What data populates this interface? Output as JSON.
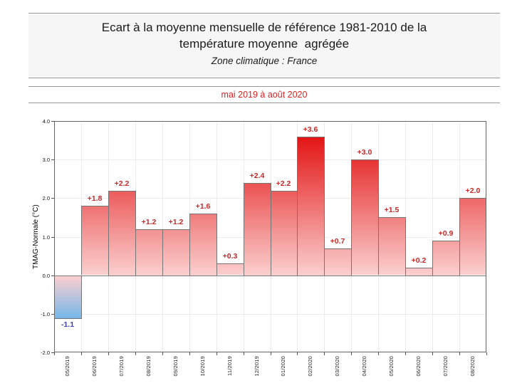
{
  "header": {
    "title_line1": "Ecart à la moyenne mensuelle de référence 1981-2010 de la",
    "title_line2": "température moyenne  agrégée",
    "subtitle": "Zone climatique : France",
    "period": "mai 2019 à août 2020"
  },
  "chart_data": {
    "type": "bar",
    "title": "Ecart à la moyenne mensuelle de référence 1981-2010 de la température moyenne agrégée",
    "subtitle": "Zone climatique : France",
    "period": "mai 2019 à août 2020",
    "xlabel": "",
    "ylabel": "TMAG-Normale (°C)",
    "ylim": [
      -2.0,
      4.0
    ],
    "grid": true,
    "legend": "none",
    "categories": [
      "05/2019",
      "06/2019",
      "07/2019",
      "08/2019",
      "09/2019",
      "10/2019",
      "11/2019",
      "12/2019",
      "01/2020",
      "02/2020",
      "03/2020",
      "04/2020",
      "05/2020",
      "06/2020",
      "07/2020",
      "08/2020"
    ],
    "values": [
      -1.1,
      1.8,
      2.2,
      1.2,
      1.2,
      1.6,
      0.3,
      2.4,
      2.2,
      3.6,
      0.7,
      3.0,
      1.5,
      0.2,
      0.9,
      2.0
    ],
    "value_labels": [
      "-1.1",
      "+1.8",
      "+2.2",
      "+1.2",
      "+1.2",
      "+1.6",
      "+0.3",
      "+2.4",
      "+2.2",
      "+3.6",
      "+0.7",
      "+3.0",
      "+1.5",
      "+0.2",
      "+0.9",
      "+2.0"
    ],
    "yticks": [
      {
        "v": 4.0,
        "label": "4.0"
      },
      {
        "v": 3.0,
        "label": "3.0"
      },
      {
        "v": 2.0,
        "label": "2.0"
      },
      {
        "v": 1.0,
        "label": "1.0"
      },
      {
        "v": 0.0,
        "label": "0.0"
      },
      {
        "v": -1.0,
        "label": "-1.0"
      },
      {
        "v": -2.0,
        "label": "-2.0"
      }
    ]
  },
  "colors": {
    "positive_gradient_zero": "#fbcfcf",
    "positive_gradient_max": "#e00000",
    "negative_gradient_zero": "#e6f3fc",
    "negative_gradient_min": "#1a86d9",
    "positive_label": "#c62828",
    "negative_label": "#3f3fb5",
    "period_text": "#dd2222",
    "bar_border": "#757575",
    "frame": "#666666",
    "grid": "#ececec",
    "header_background": "#f6f6f6",
    "header_border": "#9a9a9a"
  }
}
